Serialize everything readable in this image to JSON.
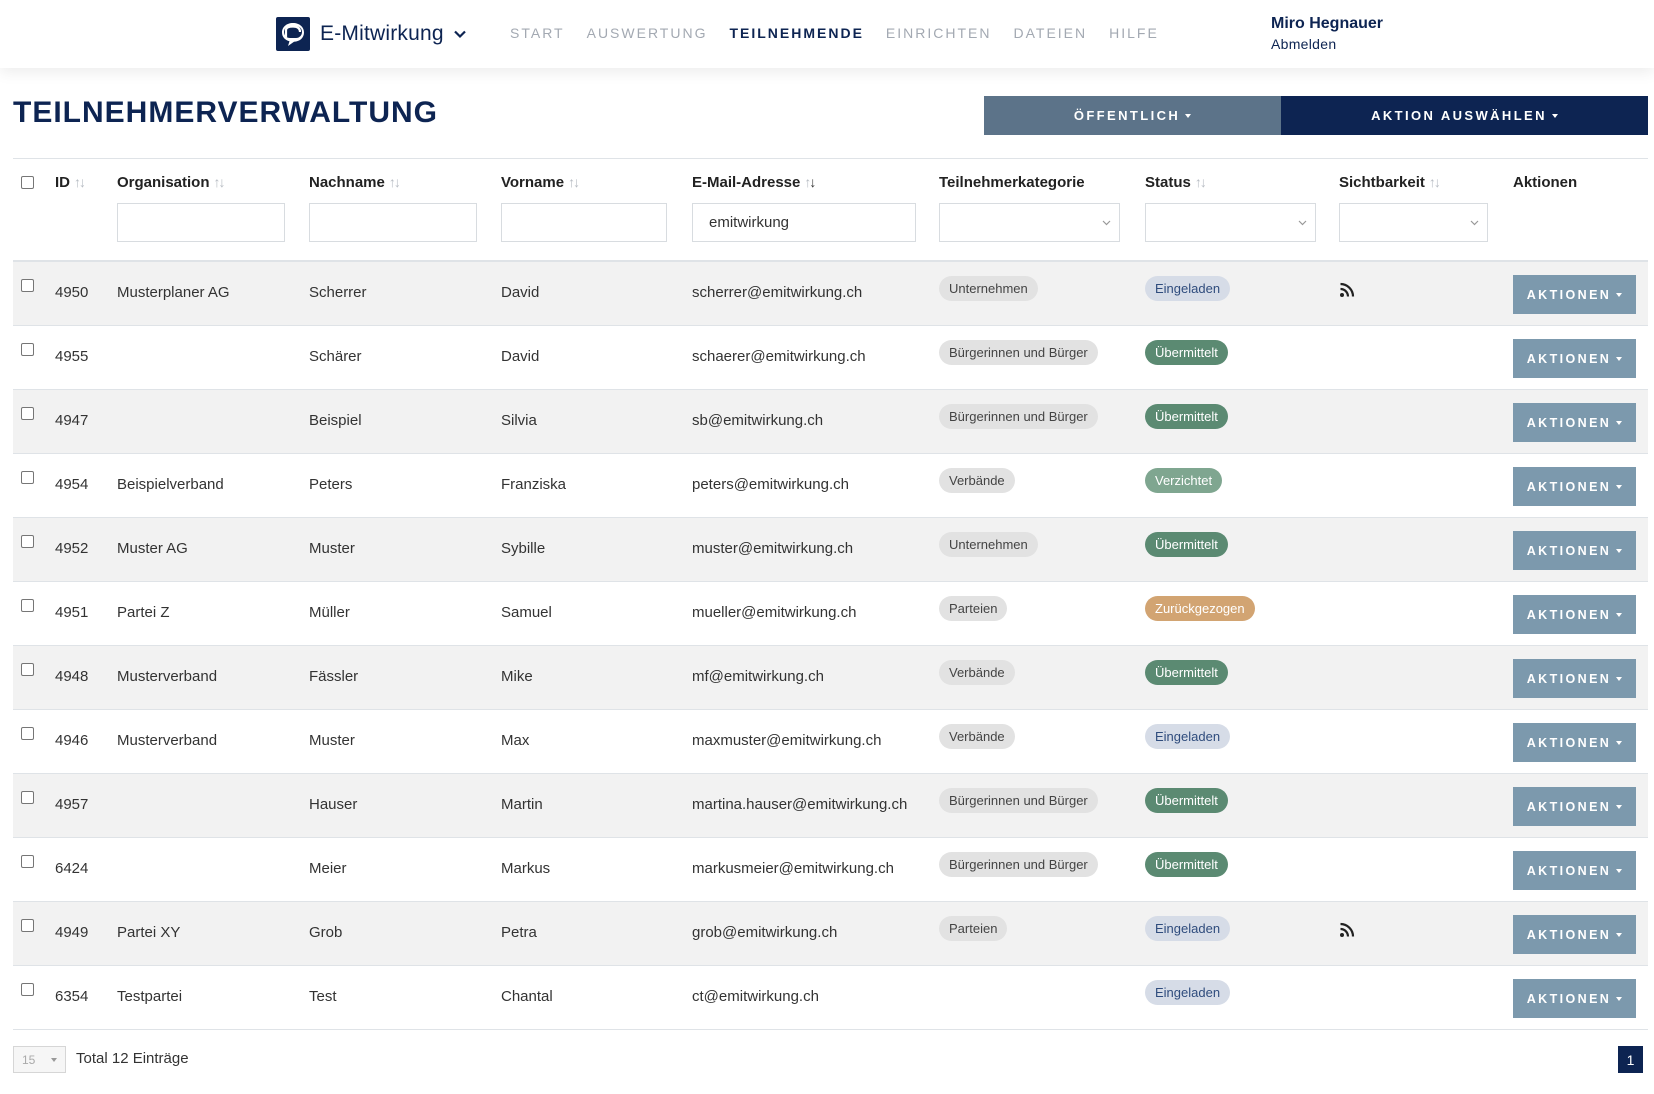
{
  "app": {
    "name": "E-Mitwirkung",
    "nav": [
      "START",
      "AUSWERTUNG",
      "TEILNEHMENDE",
      "EINRICHTEN",
      "DATEIEN",
      "HILFE"
    ],
    "nav_active": "TEILNEHMENDE",
    "user": {
      "name": "Miro Hegnauer",
      "logout": "Abmelden"
    }
  },
  "page": {
    "title": "TEILNEHMERVERWALTUNG",
    "visibility_button": "ÖFFENTLICH",
    "action_button": "AKTION AUSWÄHLEN"
  },
  "table": {
    "columns": {
      "id": "ID",
      "organisation": "Organisation",
      "lastname": "Nachname",
      "firstname": "Vorname",
      "email": "E-Mail-Adresse",
      "category": "Teilnehmerkategorie",
      "status": "Status",
      "visibility": "Sichtbarkeit",
      "actions": "Aktionen"
    },
    "filters": {
      "organisation": "",
      "lastname": "",
      "firstname": "",
      "email": "emitwirkung",
      "category": "",
      "status": "",
      "visibility": ""
    },
    "row_button_label": "AKTIONEN",
    "rows": [
      {
        "id": "4950",
        "organisation": "Musterplaner AG",
        "lastname": "Scherrer",
        "firstname": "David",
        "email": "scherrer@emitwirkung.ch",
        "category": "Unternehmen",
        "status": "Eingeladen",
        "rss": true
      },
      {
        "id": "4955",
        "organisation": "",
        "lastname": "Schärer",
        "firstname": "David",
        "email": "schaerer@emitwirkung.ch",
        "category": "Bürgerinnen und Bürger",
        "status": "Übermittelt",
        "rss": false
      },
      {
        "id": "4947",
        "organisation": "",
        "lastname": "Beispiel",
        "firstname": "Silvia",
        "email": "sb@emitwirkung.ch",
        "category": "Bürgerinnen und Bürger",
        "status": "Übermittelt",
        "rss": false
      },
      {
        "id": "4954",
        "organisation": "Beispielverband",
        "lastname": "Peters",
        "firstname": "Franziska",
        "email": "peters@emitwirkung.ch",
        "category": "Verbände",
        "status": "Verzichtet",
        "rss": false
      },
      {
        "id": "4952",
        "organisation": "Muster AG",
        "lastname": "Muster",
        "firstname": "Sybille",
        "email": "muster@emitwirkung.ch",
        "category": "Unternehmen",
        "status": "Übermittelt",
        "rss": false
      },
      {
        "id": "4951",
        "organisation": "Partei Z",
        "lastname": "Müller",
        "firstname": "Samuel",
        "email": "mueller@emitwirkung.ch",
        "category": "Parteien",
        "status": "Zurückgezogen",
        "rss": false
      },
      {
        "id": "4948",
        "organisation": "Musterverband",
        "lastname": "Fässler",
        "firstname": "Mike",
        "email": "mf@emitwirkung.ch",
        "category": "Verbände",
        "status": "Übermittelt",
        "rss": false
      },
      {
        "id": "4946",
        "organisation": "Musterverband",
        "lastname": "Muster",
        "firstname": "Max",
        "email": "maxmuster@emitwirkung.ch",
        "category": "Verbände",
        "status": "Eingeladen",
        "rss": false
      },
      {
        "id": "4957",
        "organisation": "",
        "lastname": "Hauser",
        "firstname": "Martin",
        "email": "martina.hauser@emitwirkung.ch",
        "category": "Bürgerinnen und Bürger",
        "status": "Übermittelt",
        "rss": false
      },
      {
        "id": "6424",
        "organisation": "",
        "lastname": "Meier",
        "firstname": "Markus",
        "email": "markusmeier@emitwirkung.ch",
        "category": "Bürgerinnen und Bürger",
        "status": "Übermittelt",
        "rss": false
      },
      {
        "id": "4949",
        "organisation": "Partei XY",
        "lastname": "Grob",
        "firstname": "Petra",
        "email": "grob@emitwirkung.ch",
        "category": "Parteien",
        "status": "Eingeladen",
        "rss": true
      },
      {
        "id": "6354",
        "organisation": "Testpartei",
        "lastname": "Test",
        "firstname": "Chantal",
        "email": "ct@emitwirkung.ch",
        "category": "",
        "status": "Eingeladen",
        "rss": false
      }
    ]
  },
  "footer": {
    "page_size": "15",
    "total": "Total 12 Einträge",
    "current_page": "1"
  },
  "colors": {
    "brand": "#0d2452",
    "public_button": "#5c7389",
    "row_button": "#7c99ad",
    "status_eingeladen": "#d6dce7",
    "status_uebermittelt": "#5b8a72",
    "status_verzichtet": "#7fa690",
    "status_zurueckgezogen": "#d2a472"
  },
  "icons": {
    "logo": "speech-bubble-logo",
    "dropdown": "chevron-down-icon",
    "feed": "rss-icon",
    "sort": "sort-arrows-icon"
  }
}
